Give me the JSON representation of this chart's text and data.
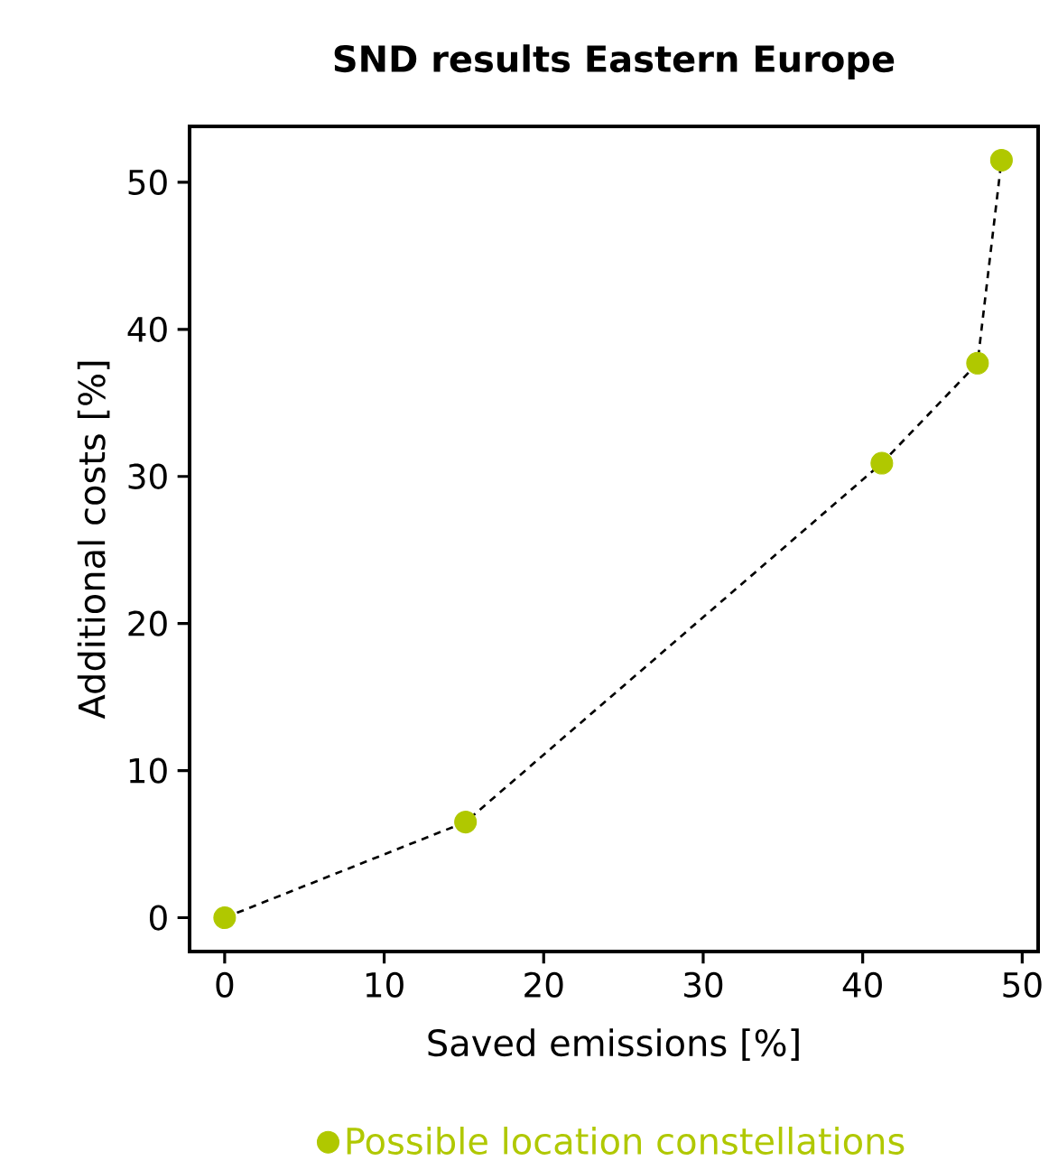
{
  "chart_data": {
    "type": "scatter",
    "title": "SND results Eastern Europe",
    "xlabel": "Saved emissions [%]",
    "ylabel": "Additional costs [%]",
    "xlim": [
      -2.2,
      51
    ],
    "ylim": [
      -2.3,
      53.8
    ],
    "xticks": [
      0,
      10,
      20,
      30,
      40,
      50
    ],
    "yticks": [
      0,
      10,
      20,
      30,
      40,
      50
    ],
    "grid": false,
    "legend": "bottom",
    "series": [
      {
        "type": "line",
        "color": "#000000",
        "line_style": "dashed",
        "marker": "none",
        "x": [
          0,
          15.1,
          41.2,
          47.2,
          48.7
        ],
        "values": [
          0,
          6.5,
          30.9,
          37.7,
          51.5
        ]
      },
      {
        "type": "scatter",
        "name": "Possible location constellations",
        "color": "#b0c800",
        "marker": "circle",
        "x": [
          0,
          15.1,
          41.2,
          47.2,
          48.7
        ],
        "values": [
          0,
          6.5,
          30.9,
          37.7,
          51.5
        ]
      }
    ]
  }
}
